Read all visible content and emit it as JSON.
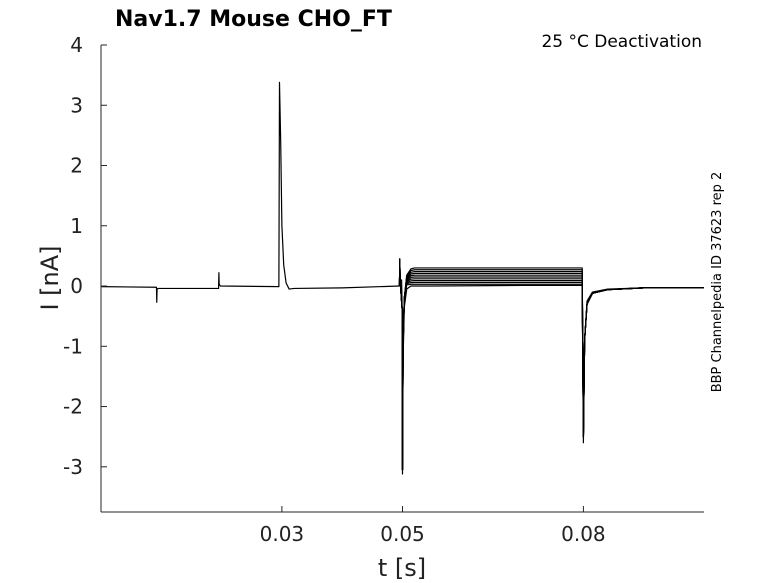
{
  "chart_data": {
    "type": "line",
    "title": "Nav1.7  Mouse  CHO_FT",
    "annotation": "25 °C  Deactivation",
    "side_note": "BBP Channelpedia ID 37623 rep 2",
    "xlabel": "t [s]",
    "ylabel": "I [nA]",
    "xlim": [
      0,
      0.1
    ],
    "ylim": [
      -3.75,
      4
    ],
    "xticks": [
      0.03,
      0.05,
      0.08
    ],
    "xtick_labels": [
      "0.03",
      "0.05",
      "0.08"
    ],
    "yticks": [
      4,
      3,
      2,
      1,
      0,
      -1,
      -2,
      -3
    ],
    "ytick_labels": [
      "4",
      "3",
      "2",
      "1",
      "0",
      "-1",
      "-2",
      "-3"
    ],
    "grid": false,
    "legend": "none",
    "line_color": "#000000",
    "step_levels": [
      0.3,
      0.27,
      0.24,
      0.21,
      0.18,
      0.15,
      0.12,
      0.09,
      0.06,
      0.03
    ],
    "series": [
      {
        "values": [
          [
            0,
            -0.01
          ],
          [
            0.0092,
            -0.02
          ],
          [
            0.00925,
            -0.27
          ],
          [
            0.0093,
            -0.05
          ],
          [
            0.0095,
            -0.04
          ],
          [
            0.0195,
            -0.04
          ],
          [
            0.01955,
            0.22
          ],
          [
            0.0196,
            0.03
          ],
          [
            0.0198,
            0.0
          ],
          [
            0.0295,
            -0.01
          ],
          [
            0.0296,
            3.38
          ],
          [
            0.0298,
            2.4
          ],
          [
            0.03,
            1.0
          ],
          [
            0.0303,
            0.35
          ],
          [
            0.0307,
            0.05
          ],
          [
            0.0312,
            -0.05
          ],
          [
            0.032,
            -0.04
          ],
          [
            0.04,
            -0.03
          ],
          [
            0.0495,
            0.0
          ]
        ]
      },
      {
        "values": [
          [
            0.0495,
            0.0
          ],
          [
            0.04955,
            0.45
          ],
          [
            0.0496,
            0.1
          ],
          [
            0.04985,
            0.1
          ],
          [
            0.04995,
            -0.4
          ],
          [
            0.05,
            -3.12
          ],
          [
            0.0501,
            -1.2
          ],
          [
            0.0503,
            -0.35
          ],
          [
            0.0507,
            -0.05
          ],
          [
            0.0514,
            0.0
          ],
          [
            0.055,
            0.0
          ],
          [
            0.07,
            0.01
          ],
          [
            0.0798,
            0.01
          ],
          [
            0.08,
            -2.6
          ],
          [
            0.0802,
            -0.9
          ],
          [
            0.0806,
            -0.25
          ],
          [
            0.0815,
            -0.1
          ],
          [
            0.084,
            -0.05
          ],
          [
            0.09,
            -0.03
          ],
          [
            0.1,
            -0.03
          ]
        ]
      }
    ]
  }
}
